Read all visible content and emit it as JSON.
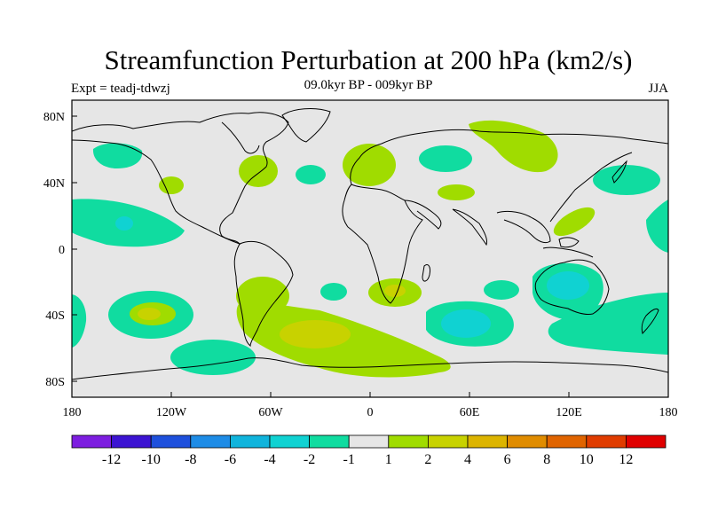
{
  "header": {
    "title": "Streamfunction Perturbation at 200 hPa (km2/s)",
    "subtitle": "09.0kyr BP - 009kyr BP",
    "left_label": "Expt = teadj-tdwzj",
    "right_label": "JJA"
  },
  "axes": {
    "x_ticks": [
      "180",
      "120W",
      "60W",
      "0",
      "60E",
      "120E",
      "180"
    ],
    "y_ticks": [
      "80N",
      "40N",
      "0",
      "40S",
      "80S"
    ]
  },
  "colorbar": {
    "labels": [
      "-12",
      "-10",
      "-8",
      "-6",
      "-4",
      "-2",
      "-1",
      "1",
      "2",
      "4",
      "6",
      "8",
      "10",
      "12"
    ],
    "colors": [
      "#7d1ee0",
      "#3c14d2",
      "#1e50dc",
      "#1e8ce6",
      "#10b4dc",
      "#10d2d2",
      "#10dca0",
      "#e6e6e6",
      "#a0dc00",
      "#c8d200",
      "#dcb400",
      "#e08c00",
      "#e06400",
      "#e03c00",
      "#e00000"
    ]
  },
  "colors": {
    "land_bg": "#e6e6e6",
    "neg1": "#10dca0",
    "neg2": "#10d2d2",
    "pos1": "#a0dc00",
    "pos2": "#c8d200"
  }
}
